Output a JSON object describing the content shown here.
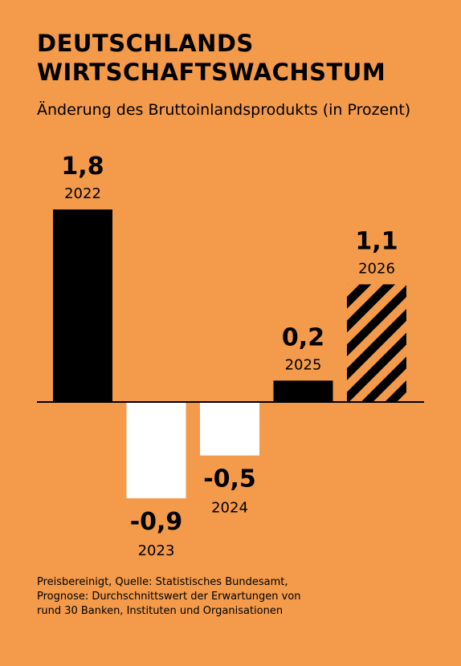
{
  "header": {
    "title_lines": [
      "DEUTSCHLANDS",
      "WIRTSCHAFTSWACHSTUM"
    ],
    "subtitle": "Änderung des Bruttoinlandsprodukts (in Prozent)"
  },
  "chart_data": {
    "type": "bar",
    "title": "DEUTSCHLANDS WIRTSCHAFTSWACHSTUM",
    "subtitle": "Änderung des Bruttoinlandsprodukts (in Prozent)",
    "categories": [
      "2022",
      "2023",
      "2024",
      "2025",
      "2026"
    ],
    "values": [
      1.8,
      -0.9,
      -0.5,
      0.2,
      1.1
    ],
    "value_labels": [
      "1,8",
      "-0,9",
      "-0,5",
      "0,2",
      "1,1"
    ],
    "forecast": [
      false,
      false,
      false,
      false,
      true
    ],
    "ylim": [
      -1.0,
      2.0
    ],
    "colors": {
      "positive": "#000000",
      "negative": "#FFFFFF",
      "forecast_stripe_a": "#000000",
      "forecast_stripe_b": "#F39A4B",
      "background": "#F39A4B"
    }
  },
  "footnote": {
    "lines": [
      "Preisbereinigt, Quelle: Statistisches Bundesamt,",
      "Prognose: Durchschnittswert der Erwartungen von",
      "rund 30 Banken, Instituten und Organisationen"
    ]
  }
}
